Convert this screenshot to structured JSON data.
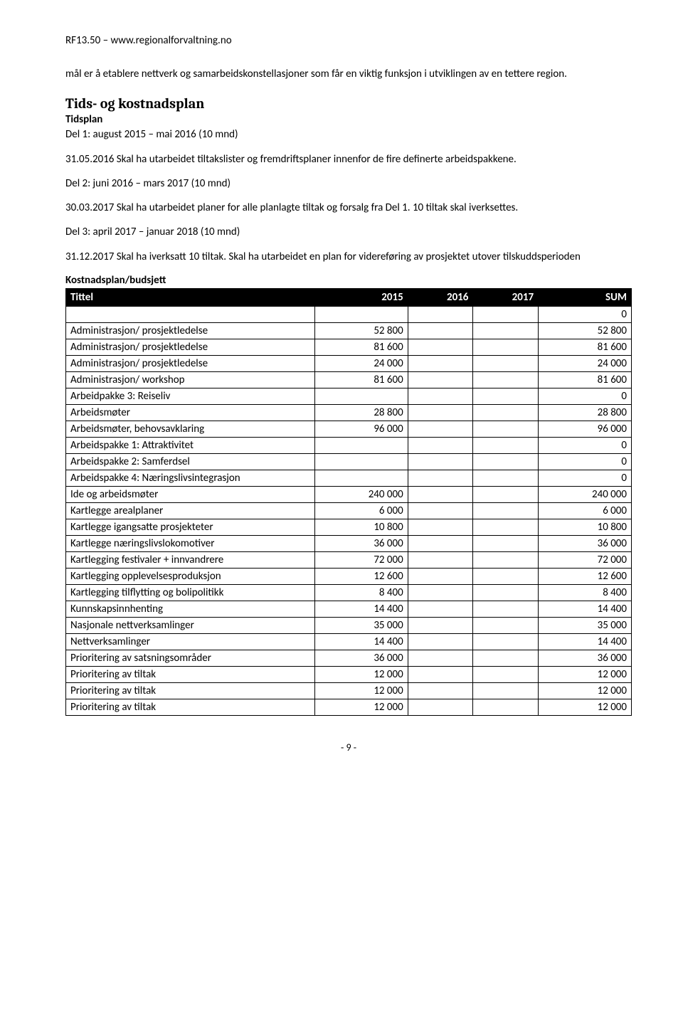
{
  "header": "RF13.50 – www.regionalforvaltning.no",
  "intro": "mål er å etablere nettverk og samarbeidskonstellasjoner som får en viktig funksjon i utviklingen av en tettere region.",
  "section_title": "Tids- og kostnadsplan",
  "tidsplan_heading": "Tidsplan",
  "del1_title": "Del 1: august 2015 – mai 2016 (10 mnd)",
  "del1_text": "31.05.2016    Skal ha utarbeidet tiltakslister og fremdriftsplaner innenfor de fire definerte arbeidspakkene.",
  "del2_title": "Del 2: juni 2016 – mars 2017 (10 mnd)",
  "del2_text": "30.03.2017    Skal ha utarbeidet planer for alle planlagte tiltak og forsalg fra Del 1. 10 tiltak skal iverksettes.",
  "del3_title": "Del 3: april 2017 – januar 2018 (10 mnd)",
  "del3_text": "31.12.2017    Skal ha iverksatt 10 tiltak. Skal ha utarbeidet en plan for videreføring av prosjektet utover tilskuddsperioden",
  "budget_heading": "Kostnadsplan/budsjett",
  "table": {
    "columns": [
      "Tittel",
      "2015",
      "2016",
      "2017",
      "SUM"
    ],
    "col_align": [
      "left",
      "right",
      "right",
      "right",
      "right"
    ],
    "rows": [
      [
        "",
        "",
        "",
        "",
        "0"
      ],
      [
        "Administrasjon/ prosjektledelse",
        "52 800",
        "",
        "",
        "52 800"
      ],
      [
        "Administrasjon/ prosjektledelse",
        "81 600",
        "",
        "",
        "81 600"
      ],
      [
        "Administrasjon/ prosjektledelse",
        "24 000",
        "",
        "",
        "24 000"
      ],
      [
        "Administrasjon/ workshop",
        "81 600",
        "",
        "",
        "81 600"
      ],
      [
        "Arbeidpakke 3: Reiseliv",
        "",
        "",
        "",
        "0"
      ],
      [
        "Arbeidsmøter",
        "28 800",
        "",
        "",
        "28 800"
      ],
      [
        "Arbeidsmøter, behovsavklaring",
        "96 000",
        "",
        "",
        "96 000"
      ],
      [
        "Arbeidspakke 1: Attraktivitet",
        "",
        "",
        "",
        "0"
      ],
      [
        "Arbeidspakke 2: Samferdsel",
        "",
        "",
        "",
        "0"
      ],
      [
        "Arbeidspakke 4: Næringslivsintegrasjon",
        "",
        "",
        "",
        "0"
      ],
      [
        "Ide og arbeidsmøter",
        "240 000",
        "",
        "",
        "240 000"
      ],
      [
        "Kartlegge arealplaner",
        "6 000",
        "",
        "",
        "6 000"
      ],
      [
        "Kartlegge igangsatte prosjekteter",
        "10 800",
        "",
        "",
        "10 800"
      ],
      [
        "Kartlegge næringslivslokomotiver",
        "36 000",
        "",
        "",
        "36 000"
      ],
      [
        "Kartlegging festivaler + innvandrere",
        "72 000",
        "",
        "",
        "72 000"
      ],
      [
        "Kartlegging opplevelsesproduksjon",
        "12 600",
        "",
        "",
        "12 600"
      ],
      [
        "Kartlegging tilflytting og bolipolitikk",
        "8 400",
        "",
        "",
        "8 400"
      ],
      [
        "Kunnskapsinnhenting",
        "14 400",
        "",
        "",
        "14 400"
      ],
      [
        "Nasjonale nettverksamlinger",
        "35 000",
        "",
        "",
        "35 000"
      ],
      [
        "Nettverksamlinger",
        "14 400",
        "",
        "",
        "14 400"
      ],
      [
        "Prioritering av satsningsområder",
        "36 000",
        "",
        "",
        "36 000"
      ],
      [
        "Prioritering av tiltak",
        "12 000",
        "",
        "",
        "12 000"
      ],
      [
        "Prioritering av tiltak",
        "12 000",
        "",
        "",
        "12 000"
      ],
      [
        "Prioritering av tiltak",
        "12 000",
        "",
        "",
        "12 000"
      ]
    ]
  },
  "footer": "- 9 -"
}
